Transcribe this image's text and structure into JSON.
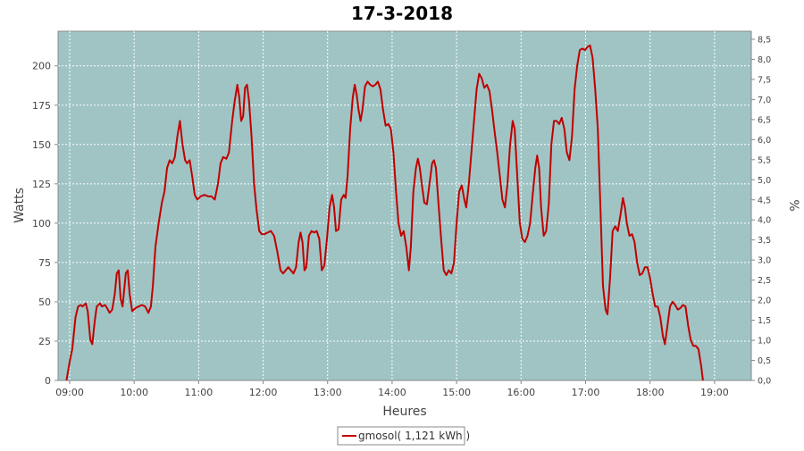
{
  "chart_data": {
    "type": "line",
    "title": "17-3-2018",
    "xlabel": "Heures",
    "ylabel": "Watts",
    "y2label": "%",
    "xlim": [
      8.82,
      19.57
    ],
    "ylim": [
      0,
      222
    ],
    "y2lim": [
      0,
      8.7
    ],
    "x_ticks": [
      {
        "v": 9,
        "label": "09:00"
      },
      {
        "v": 10,
        "label": "10:00"
      },
      {
        "v": 11,
        "label": "11:00"
      },
      {
        "v": 12,
        "label": "12:00"
      },
      {
        "v": 13,
        "label": "13:00"
      },
      {
        "v": 14,
        "label": "14:00"
      },
      {
        "v": 15,
        "label": "15:00"
      },
      {
        "v": 16,
        "label": "16:00"
      },
      {
        "v": 17,
        "label": "17:00"
      },
      {
        "v": 18,
        "label": "18:00"
      },
      {
        "v": 19,
        "label": "19:00"
      }
    ],
    "y_ticks": [
      {
        "v": 0,
        "label": "0"
      },
      {
        "v": 25,
        "label": "25"
      },
      {
        "v": 50,
        "label": "50"
      },
      {
        "v": 75,
        "label": "75"
      },
      {
        "v": 100,
        "label": "100"
      },
      {
        "v": 125,
        "label": "125"
      },
      {
        "v": 150,
        "label": "150"
      },
      {
        "v": 175,
        "label": "175"
      },
      {
        "v": 200,
        "label": "200"
      }
    ],
    "y2_ticks": [
      {
        "v": 0.0,
        "label": "0,0"
      },
      {
        "v": 0.5,
        "label": "0,5"
      },
      {
        "v": 1.0,
        "label": "1,0"
      },
      {
        "v": 1.5,
        "label": "1,5"
      },
      {
        "v": 2.0,
        "label": "2,0"
      },
      {
        "v": 2.5,
        "label": "2,5"
      },
      {
        "v": 3.0,
        "label": "3,0"
      },
      {
        "v": 3.5,
        "label": "3,5"
      },
      {
        "v": 4.0,
        "label": "4,0"
      },
      {
        "v": 4.5,
        "label": "4,5"
      },
      {
        "v": 5.0,
        "label": "5,0"
      },
      {
        "v": 5.5,
        "label": "5,5"
      },
      {
        "v": 6.0,
        "label": "6,0"
      },
      {
        "v": 6.5,
        "label": "6,5"
      },
      {
        "v": 7.0,
        "label": "7,0"
      },
      {
        "v": 7.5,
        "label": "7,5"
      },
      {
        "v": 8.0,
        "label": "8,0"
      },
      {
        "v": 8.5,
        "label": "8,5"
      }
    ],
    "grid": true,
    "legend_position": "bottom-center",
    "colors": {
      "plot_bg": "#a0c4c4",
      "series": "#c00000",
      "grid": "#ffffff",
      "axis": "#888888"
    },
    "series": [
      {
        "name": "gmosol( 1,121 kWh )",
        "points": [
          [
            8.95,
            0
          ],
          [
            9.0,
            12
          ],
          [
            9.04,
            20
          ],
          [
            9.09,
            40
          ],
          [
            9.13,
            47
          ],
          [
            9.17,
            48
          ],
          [
            9.2,
            47
          ],
          [
            9.25,
            49
          ],
          [
            9.28,
            44
          ],
          [
            9.32,
            26
          ],
          [
            9.35,
            23
          ],
          [
            9.39,
            38
          ],
          [
            9.42,
            47
          ],
          [
            9.47,
            49
          ],
          [
            9.5,
            47
          ],
          [
            9.55,
            48
          ],
          [
            9.58,
            46
          ],
          [
            9.62,
            43
          ],
          [
            9.66,
            45
          ],
          [
            9.7,
            55
          ],
          [
            9.73,
            68
          ],
          [
            9.76,
            70
          ],
          [
            9.79,
            52
          ],
          [
            9.82,
            47
          ],
          [
            9.84,
            55
          ],
          [
            9.87,
            68
          ],
          [
            9.9,
            70
          ],
          [
            9.93,
            55
          ],
          [
            9.97,
            44
          ],
          [
            10.02,
            46
          ],
          [
            10.07,
            47
          ],
          [
            10.12,
            48
          ],
          [
            10.17,
            47
          ],
          [
            10.22,
            43
          ],
          [
            10.26,
            47
          ],
          [
            10.29,
            60
          ],
          [
            10.33,
            85
          ],
          [
            10.38,
            100
          ],
          [
            10.43,
            113
          ],
          [
            10.47,
            120
          ],
          [
            10.51,
            135
          ],
          [
            10.55,
            140
          ],
          [
            10.59,
            138
          ],
          [
            10.63,
            142
          ],
          [
            10.67,
            155
          ],
          [
            10.71,
            165
          ],
          [
            10.75,
            150
          ],
          [
            10.79,
            140
          ],
          [
            10.82,
            138
          ],
          [
            10.86,
            140
          ],
          [
            10.9,
            130
          ],
          [
            10.94,
            118
          ],
          [
            10.98,
            115
          ],
          [
            11.03,
            117
          ],
          [
            11.09,
            118
          ],
          [
            11.15,
            117
          ],
          [
            11.2,
            117
          ],
          [
            11.25,
            115
          ],
          [
            11.3,
            125
          ],
          [
            11.34,
            138
          ],
          [
            11.38,
            142
          ],
          [
            11.43,
            141
          ],
          [
            11.47,
            145
          ],
          [
            11.52,
            165
          ],
          [
            11.56,
            178
          ],
          [
            11.6,
            188
          ],
          [
            11.63,
            180
          ],
          [
            11.66,
            165
          ],
          [
            11.69,
            168
          ],
          [
            11.72,
            186
          ],
          [
            11.75,
            188
          ],
          [
            11.78,
            178
          ],
          [
            11.82,
            155
          ],
          [
            11.86,
            125
          ],
          [
            11.9,
            108
          ],
          [
            11.94,
            95
          ],
          [
            11.98,
            93
          ],
          [
            12.02,
            93
          ],
          [
            12.07,
            94
          ],
          [
            12.12,
            95
          ],
          [
            12.17,
            92
          ],
          [
            12.22,
            82
          ],
          [
            12.27,
            70
          ],
          [
            12.31,
            68
          ],
          [
            12.35,
            70
          ],
          [
            12.39,
            72
          ],
          [
            12.43,
            70
          ],
          [
            12.47,
            68
          ],
          [
            12.51,
            72
          ],
          [
            12.55,
            88
          ],
          [
            12.58,
            94
          ],
          [
            12.61,
            88
          ],
          [
            12.64,
            70
          ],
          [
            12.67,
            72
          ],
          [
            12.71,
            92
          ],
          [
            12.75,
            95
          ],
          [
            12.79,
            94
          ],
          [
            12.83,
            95
          ],
          [
            12.87,
            90
          ],
          [
            12.91,
            70
          ],
          [
            12.95,
            73
          ],
          [
            12.99,
            90
          ],
          [
            13.03,
            110
          ],
          [
            13.07,
            118
          ],
          [
            13.1,
            110
          ],
          [
            13.13,
            95
          ],
          [
            13.17,
            96
          ],
          [
            13.21,
            115
          ],
          [
            13.25,
            118
          ],
          [
            13.28,
            116
          ],
          [
            13.31,
            130
          ],
          [
            13.35,
            160
          ],
          [
            13.39,
            180
          ],
          [
            13.42,
            188
          ],
          [
            13.45,
            182
          ],
          [
            13.48,
            172
          ],
          [
            13.51,
            165
          ],
          [
            13.54,
            172
          ],
          [
            13.58,
            187
          ],
          [
            13.62,
            190
          ],
          [
            13.66,
            188
          ],
          [
            13.7,
            187
          ],
          [
            13.74,
            188
          ],
          [
            13.78,
            190
          ],
          [
            13.82,
            185
          ],
          [
            13.86,
            172
          ],
          [
            13.9,
            162
          ],
          [
            13.94,
            163
          ],
          [
            13.98,
            160
          ],
          [
            14.02,
            145
          ],
          [
            14.06,
            120
          ],
          [
            14.1,
            100
          ],
          [
            14.14,
            92
          ],
          [
            14.18,
            95
          ],
          [
            14.22,
            85
          ],
          [
            14.26,
            70
          ],
          [
            14.29,
            85
          ],
          [
            14.33,
            120
          ],
          [
            14.37,
            135
          ],
          [
            14.4,
            141
          ],
          [
            14.43,
            135
          ],
          [
            14.46,
            125
          ],
          [
            14.5,
            113
          ],
          [
            14.54,
            112
          ],
          [
            14.58,
            125
          ],
          [
            14.62,
            138
          ],
          [
            14.65,
            140
          ],
          [
            14.68,
            135
          ],
          [
            14.72,
            112
          ],
          [
            14.76,
            90
          ],
          [
            14.8,
            70
          ],
          [
            14.84,
            67
          ],
          [
            14.88,
            70
          ],
          [
            14.92,
            68
          ],
          [
            14.96,
            75
          ],
          [
            15.0,
            100
          ],
          [
            15.04,
            120
          ],
          [
            15.08,
            124
          ],
          [
            15.12,
            115
          ],
          [
            15.15,
            110
          ],
          [
            15.19,
            125
          ],
          [
            15.23,
            145
          ],
          [
            15.27,
            165
          ],
          [
            15.31,
            185
          ],
          [
            15.35,
            195
          ],
          [
            15.39,
            192
          ],
          [
            15.43,
            186
          ],
          [
            15.47,
            188
          ],
          [
            15.51,
            184
          ],
          [
            15.55,
            172
          ],
          [
            15.59,
            158
          ],
          [
            15.63,
            145
          ],
          [
            15.67,
            130
          ],
          [
            15.71,
            115
          ],
          [
            15.75,
            110
          ],
          [
            15.79,
            125
          ],
          [
            15.83,
            150
          ],
          [
            15.87,
            165
          ],
          [
            15.9,
            160
          ],
          [
            15.94,
            130
          ],
          [
            15.98,
            100
          ],
          [
            16.02,
            90
          ],
          [
            16.06,
            88
          ],
          [
            16.1,
            92
          ],
          [
            16.14,
            100
          ],
          [
            16.18,
            118
          ],
          [
            16.22,
            135
          ],
          [
            16.25,
            143
          ],
          [
            16.28,
            135
          ],
          [
            16.31,
            110
          ],
          [
            16.35,
            92
          ],
          [
            16.39,
            95
          ],
          [
            16.43,
            112
          ],
          [
            16.47,
            150
          ],
          [
            16.51,
            165
          ],
          [
            16.55,
            165
          ],
          [
            16.59,
            163
          ],
          [
            16.63,
            167
          ],
          [
            16.67,
            160
          ],
          [
            16.71,
            145
          ],
          [
            16.75,
            140
          ],
          [
            16.79,
            155
          ],
          [
            16.83,
            185
          ],
          [
            16.87,
            200
          ],
          [
            16.91,
            210
          ],
          [
            16.95,
            211
          ],
          [
            16.99,
            210
          ],
          [
            17.03,
            212
          ],
          [
            17.07,
            213
          ],
          [
            17.11,
            205
          ],
          [
            17.15,
            185
          ],
          [
            17.19,
            160
          ],
          [
            17.23,
            110
          ],
          [
            17.27,
            60
          ],
          [
            17.31,
            45
          ],
          [
            17.34,
            42
          ],
          [
            17.38,
            65
          ],
          [
            17.42,
            95
          ],
          [
            17.46,
            98
          ],
          [
            17.5,
            95
          ],
          [
            17.54,
            105
          ],
          [
            17.58,
            116
          ],
          [
            17.61,
            110
          ],
          [
            17.64,
            100
          ],
          [
            17.68,
            92
          ],
          [
            17.72,
            93
          ],
          [
            17.76,
            88
          ],
          [
            17.8,
            75
          ],
          [
            17.84,
            67
          ],
          [
            17.88,
            68
          ],
          [
            17.92,
            72
          ],
          [
            17.96,
            72
          ],
          [
            18.0,
            65
          ],
          [
            18.04,
            55
          ],
          [
            18.08,
            47
          ],
          [
            18.12,
            47
          ],
          [
            18.16,
            40
          ],
          [
            18.2,
            28
          ],
          [
            18.23,
            23
          ],
          [
            18.27,
            35
          ],
          [
            18.31,
            47
          ],
          [
            18.35,
            50
          ],
          [
            18.39,
            48
          ],
          [
            18.43,
            45
          ],
          [
            18.47,
            46
          ],
          [
            18.51,
            48
          ],
          [
            18.55,
            47
          ],
          [
            18.59,
            35
          ],
          [
            18.63,
            26
          ],
          [
            18.67,
            22
          ],
          [
            18.71,
            22
          ],
          [
            18.75,
            20
          ],
          [
            18.79,
            10
          ],
          [
            18.82,
            0
          ]
        ]
      }
    ]
  }
}
